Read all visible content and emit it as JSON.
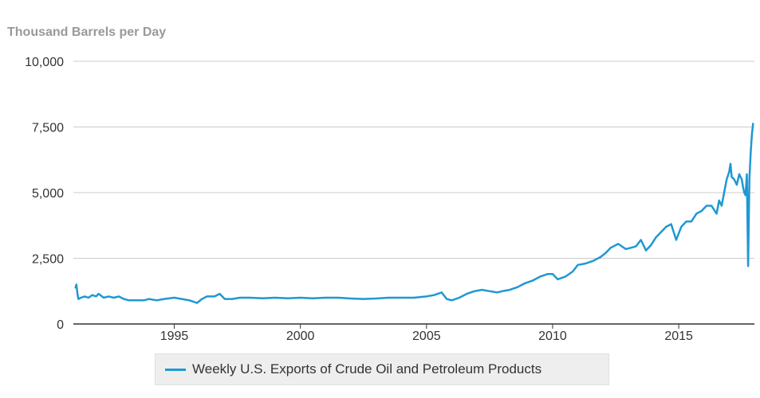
{
  "chart_data": {
    "type": "line",
    "title": "",
    "ylabel": "Thousand Barrels per Day",
    "xlabel": "",
    "xlim": [
      1991.0,
      2018.0
    ],
    "ylim": [
      0,
      10000
    ],
    "x_ticks": [
      1995,
      2000,
      2005,
      2010,
      2015
    ],
    "x_tick_labels": [
      "1995",
      "2000",
      "2005",
      "2010",
      "2015"
    ],
    "y_ticks": [
      0,
      2500,
      5000,
      7500,
      10000
    ],
    "y_tick_labels": [
      "0",
      "2,500",
      "5,000",
      "7,500",
      "10,000"
    ],
    "grid": "horizontal",
    "legend_position": "bottom",
    "color": "#1f98d3",
    "series": [
      {
        "name": "Weekly U.S. Exports of Crude Oil and Petroleum Products",
        "x": [
          1991.08,
          1991.12,
          1991.16,
          1991.2,
          1991.3,
          1991.45,
          1991.6,
          1991.75,
          1991.9,
          1992.0,
          1992.2,
          1992.4,
          1992.6,
          1992.8,
          1993.0,
          1993.2,
          1993.5,
          1993.8,
          1994.0,
          1994.3,
          1994.6,
          1995.0,
          1995.3,
          1995.6,
          1995.9,
          1996.1,
          1996.3,
          1996.6,
          1996.8,
          1997.0,
          1997.3,
          1997.6,
          1998.0,
          1998.5,
          1999.0,
          1999.5,
          2000.0,
          2000.5,
          2001.0,
          2001.5,
          2002.0,
          2002.5,
          2003.0,
          2003.5,
          2004.0,
          2004.5,
          2005.0,
          2005.3,
          2005.6,
          2005.8,
          2006.0,
          2006.3,
          2006.6,
          2006.9,
          2007.2,
          2007.5,
          2007.8,
          2008.0,
          2008.3,
          2008.6,
          2008.9,
          2009.2,
          2009.5,
          2009.8,
          2010.0,
          2010.2,
          2010.5,
          2010.8,
          2011.0,
          2011.3,
          2011.6,
          2011.9,
          2012.1,
          2012.3,
          2012.6,
          2012.9,
          2013.1,
          2013.3,
          2013.5,
          2013.7,
          2013.9,
          2014.1,
          2014.3,
          2014.5,
          2014.7,
          2014.9,
          2015.1,
          2015.3,
          2015.5,
          2015.7,
          2015.9,
          2016.1,
          2016.3,
          2016.5,
          2016.6,
          2016.7,
          2016.8,
          2016.9,
          2017.0,
          2017.05,
          2017.1,
          2017.2,
          2017.3,
          2017.4,
          2017.5,
          2017.55,
          2017.6,
          2017.65,
          2017.7,
          2017.75,
          2017.8,
          2017.85,
          2017.9,
          2017.95
        ],
        "values": [
          1350,
          1500,
          1150,
          950,
          1000,
          1050,
          1000,
          1100,
          1050,
          1150,
          1000,
          1050,
          1000,
          1050,
          950,
          900,
          900,
          900,
          950,
          900,
          950,
          1000,
          950,
          900,
          800,
          950,
          1050,
          1050,
          1150,
          950,
          950,
          1000,
          1000,
          980,
          1000,
          980,
          1000,
          980,
          1000,
          1000,
          970,
          950,
          970,
          1000,
          1000,
          1000,
          1050,
          1100,
          1200,
          950,
          900,
          1000,
          1150,
          1250,
          1300,
          1250,
          1200,
          1250,
          1300,
          1400,
          1550,
          1650,
          1800,
          1900,
          1900,
          1700,
          1800,
          2000,
          2250,
          2300,
          2400,
          2550,
          2700,
          2900,
          3050,
          2850,
          2900,
          2950,
          3200,
          2800,
          3000,
          3300,
          3500,
          3700,
          3800,
          3200,
          3700,
          3900,
          3900,
          4200,
          4300,
          4500,
          4500,
          4200,
          4700,
          4500,
          5000,
          5500,
          5800,
          6100,
          5600,
          5500,
          5300,
          5700,
          5500,
          5200,
          5000,
          4900,
          5700,
          2200,
          5500,
          6500,
          7200,
          7650
        ]
      }
    ]
  }
}
